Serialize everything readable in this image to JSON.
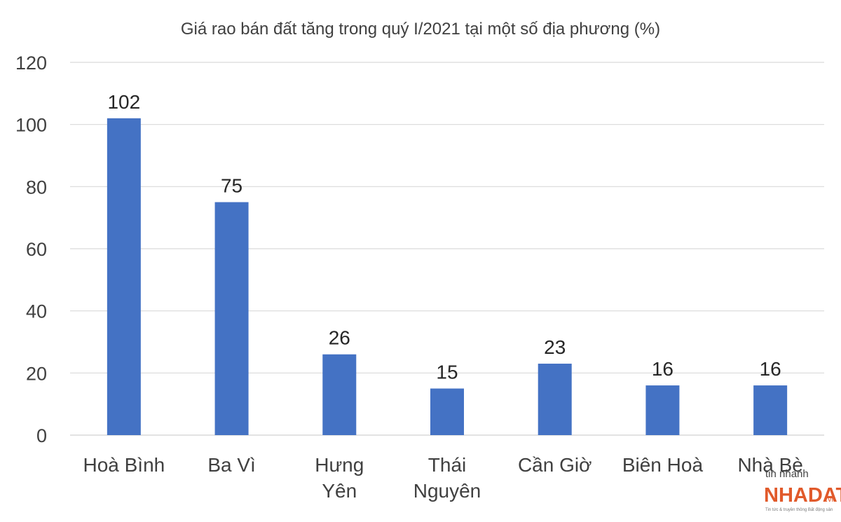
{
  "chart_data": {
    "type": "bar",
    "title": "Giá rao bán đất tăng trong quý I/2021 tại một số địa phương (%)",
    "categories": [
      [
        "Hoà Bình"
      ],
      [
        "Ba Vì"
      ],
      [
        "Hưng",
        "Yên"
      ],
      [
        "Thái",
        "Nguyên"
      ],
      [
        "Cần Giờ"
      ],
      [
        "Biên Hoà"
      ],
      [
        "Nhà Bè"
      ]
    ],
    "values": [
      102,
      75,
      26,
      15,
      23,
      16,
      16
    ],
    "data_labels": [
      "102",
      "75",
      "26",
      "15",
      "23",
      "16",
      "16"
    ],
    "ylim": [
      0,
      120
    ],
    "yticks": [
      0,
      20,
      40,
      60,
      80,
      100,
      120
    ],
    "grid": true,
    "bar_color": "#4472c4",
    "grid_color": "#d9d9d9",
    "legend": "none"
  },
  "watermark": {
    "line1": "tin nhanh",
    "brand": "NHADAT",
    "suffix": ".vn",
    "tagline": "Tin tức & truyền thông Bất động sản",
    "color": "#e15a2b"
  }
}
